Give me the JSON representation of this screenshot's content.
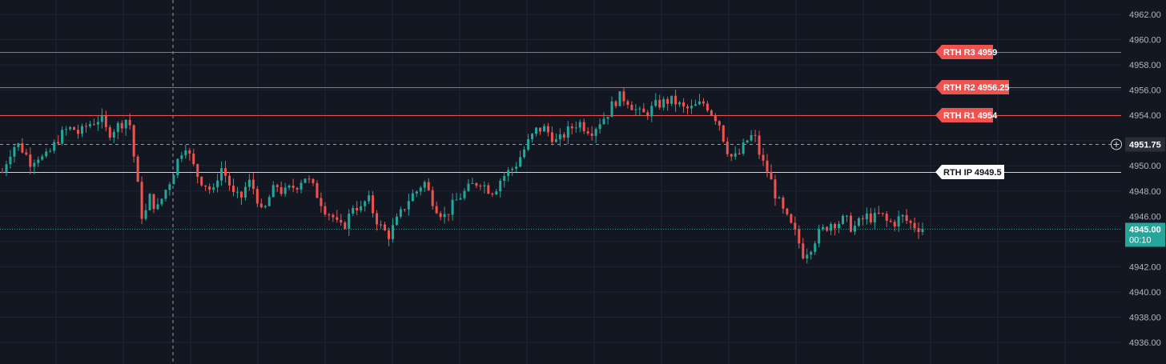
{
  "chart_data": {
    "type": "candlestick",
    "ylim": [
      4935,
      4963
    ],
    "y_ticks": [
      "4962.00",
      "4960.00",
      "4958.00",
      "4956.00",
      "4954.00",
      "4952.00",
      "4950.00",
      "4948.00",
      "4946.00",
      "4944.00",
      "4942.00",
      "4940.00",
      "4938.00",
      "4936.00"
    ],
    "grid": true,
    "colors": {
      "background": "#131722",
      "up": "#26a69a",
      "down": "#ef5350",
      "grid": "#1f2433",
      "level_line": "#ef5350",
      "pivot_line": "#d1d4dc",
      "last_price_tag": "#26a69a",
      "crosshair_tag": "#2a2e39"
    },
    "levels": [
      {
        "label": "RTH R3 4959",
        "value": 4959,
        "style": "resistance"
      },
      {
        "label": "RTH R2 4956.25",
        "value": 4956.25,
        "style": "resistance"
      },
      {
        "label": "RTH R1 4954",
        "value": 4954,
        "style": "resistance"
      },
      {
        "label": "RTH IP 4949.5",
        "value": 4949.5,
        "style": "pivot"
      }
    ],
    "last_price": {
      "value": 4945.0,
      "label": "4945.00",
      "countdown": "00:10"
    },
    "crosshair": {
      "value": 4951.75,
      "label": "4951.75"
    },
    "close_path": [
      4949.5,
      4951.0,
      4951.8,
      4951.2,
      4950.3,
      4950.8,
      4950.5,
      4951.3,
      4952.2,
      4952.8,
      4953.0,
      4952.5,
      4953.2,
      4953.5,
      4953.8,
      4952.5,
      4953.0,
      4953.4,
      4953.9,
      4949.5,
      4945.5,
      4947.5,
      4946.5,
      4947.8,
      4949.0,
      4950.5,
      4951.8,
      4950.2,
      4949.0,
      4948.5,
      4947.8,
      4950.0,
      4949.0,
      4947.5,
      4947.5,
      4948.8,
      4948.0,
      4946.0,
      4947.5,
      4948.5,
      4947.8,
      4948.2,
      4948.5,
      4949.2,
      4948.5,
      4947.5,
      4946.5,
      4946.0,
      4945.0,
      4945.5,
      4947.0,
      4946.5,
      4947.5,
      4946.0,
      4945.0,
      4944.5,
      4945.5,
      4946.5,
      4947.5,
      4948.0,
      4948.8,
      4947.5,
      4946.5,
      4946.0,
      4946.8,
      4947.5,
      4948.0,
      4948.5,
      4948.8,
      4948.2,
      4948.0,
      4949.0,
      4949.5,
      4950.0,
      4951.0,
      4952.0,
      4952.8,
      4953.0,
      4952.5,
      4951.8,
      4952.5,
      4953.0,
      4953.5,
      4953.0,
      4952.8,
      4953.5,
      4954.0,
      4955.0,
      4955.5,
      4955.2,
      4954.5,
      4954.0,
      4954.3,
      4954.8,
      4955.0,
      4955.2,
      4955.0,
      4954.5,
      4954.5,
      4954.8,
      4955.0,
      4954.2,
      4953.5,
      4951.5,
      4950.5,
      4951.0,
      4952.0,
      4952.5,
      4950.5,
      4949.5,
      4947.8,
      4946.5,
      4945.5,
      4944.5,
      4943.0,
      4943.5,
      4944.5,
      4945.0,
      4945.5,
      4945.5,
      4945.8,
      4945.0,
      4945.5,
      4946.0,
      4945.8,
      4946.2,
      4945.5,
      4945.5,
      4946.0,
      4945.5,
      4945.2,
      4945.0
    ]
  }
}
